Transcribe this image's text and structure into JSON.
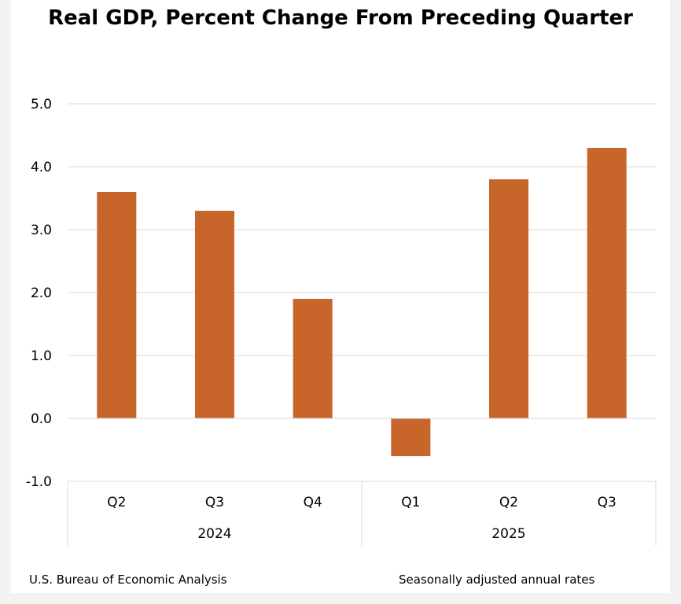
{
  "chart_data": {
    "type": "bar",
    "title": "Real GDP, Percent Change From Preceding Quarter",
    "categories": [
      "Q2",
      "Q3",
      "Q4",
      "Q1",
      "Q2",
      "Q3"
    ],
    "groups": [
      {
        "label": "2024",
        "categories": [
          "Q2",
          "Q3",
          "Q4"
        ]
      },
      {
        "label": "2025",
        "categories": [
          "Q1",
          "Q2",
          "Q3"
        ]
      }
    ],
    "values": [
      3.6,
      3.3,
      1.9,
      -0.6,
      3.8,
      4.3
    ],
    "ylim": [
      -1.0,
      5.0
    ],
    "yticks": [
      "-1.0",
      "0.0",
      "1.0",
      "2.0",
      "3.0",
      "4.0",
      "5.0"
    ],
    "xlabel": "",
    "ylabel": "",
    "grid": true,
    "legend": "none",
    "bar_color": "#c8652b",
    "grid_color": "#d9d9d9"
  },
  "footer": {
    "source": "U.S. Bureau of Economic Analysis",
    "note": "Seasonally adjusted annual rates"
  }
}
